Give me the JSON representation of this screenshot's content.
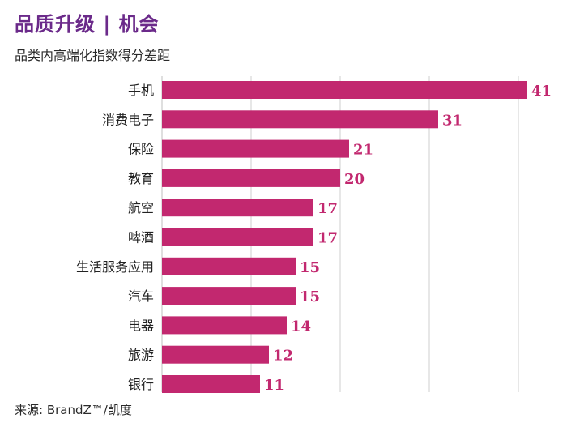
{
  "title": "品质升级 | 机会",
  "subtitle": "品类内高端化指数得分差距",
  "source": "来源: BrandZ™/凯度",
  "colors": {
    "title": "#6b2a8a",
    "bar": "#c2286f",
    "grid": "#cfcfcf",
    "text": "#222222"
  },
  "chart_data": {
    "type": "bar",
    "orientation": "horizontal",
    "categories": [
      "手机",
      "消费电子",
      "保险",
      "教育",
      "航空",
      "啤酒",
      "生活服务应用",
      "汽车",
      "电器",
      "旅游",
      "银行"
    ],
    "values": [
      41,
      31,
      21,
      20,
      17,
      17,
      15,
      15,
      14,
      12,
      11
    ],
    "xlim": [
      0,
      42
    ],
    "grid": true,
    "data_labels": true
  }
}
